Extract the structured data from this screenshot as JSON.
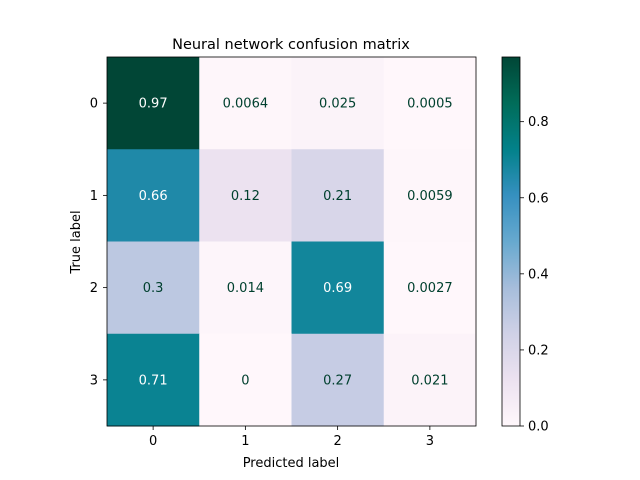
{
  "chart_data": {
    "type": "heatmap",
    "title": "Neural network confusion matrix",
    "xlabel": "Predicted label",
    "ylabel": "True label",
    "x_categories": [
      "0",
      "1",
      "2",
      "3"
    ],
    "y_categories": [
      "0",
      "1",
      "2",
      "3"
    ],
    "values": [
      [
        0.97,
        0.0064,
        0.025,
        0.0005
      ],
      [
        0.66,
        0.12,
        0.21,
        0.0059
      ],
      [
        0.3,
        0.014,
        0.69,
        0.0027
      ],
      [
        0.71,
        0,
        0.27,
        0.021
      ]
    ],
    "cell_labels": [
      [
        "0.97",
        "0.0064",
        "0.025",
        "0.0005"
      ],
      [
        "0.66",
        "0.12",
        "0.21",
        "0.0059"
      ],
      [
        "0.3",
        "0.014",
        "0.69",
        "0.0027"
      ],
      [
        "0.71",
        "0",
        "0.27",
        "0.021"
      ]
    ],
    "colormap": "PuBuGn",
    "colorbar": {
      "range": [
        0,
        0.97
      ],
      "ticks": [
        0.0,
        0.2,
        0.4,
        0.6,
        0.8
      ],
      "tick_labels": [
        "0.0",
        "0.2",
        "0.4",
        "0.6",
        "0.8"
      ]
    },
    "grid": false
  }
}
